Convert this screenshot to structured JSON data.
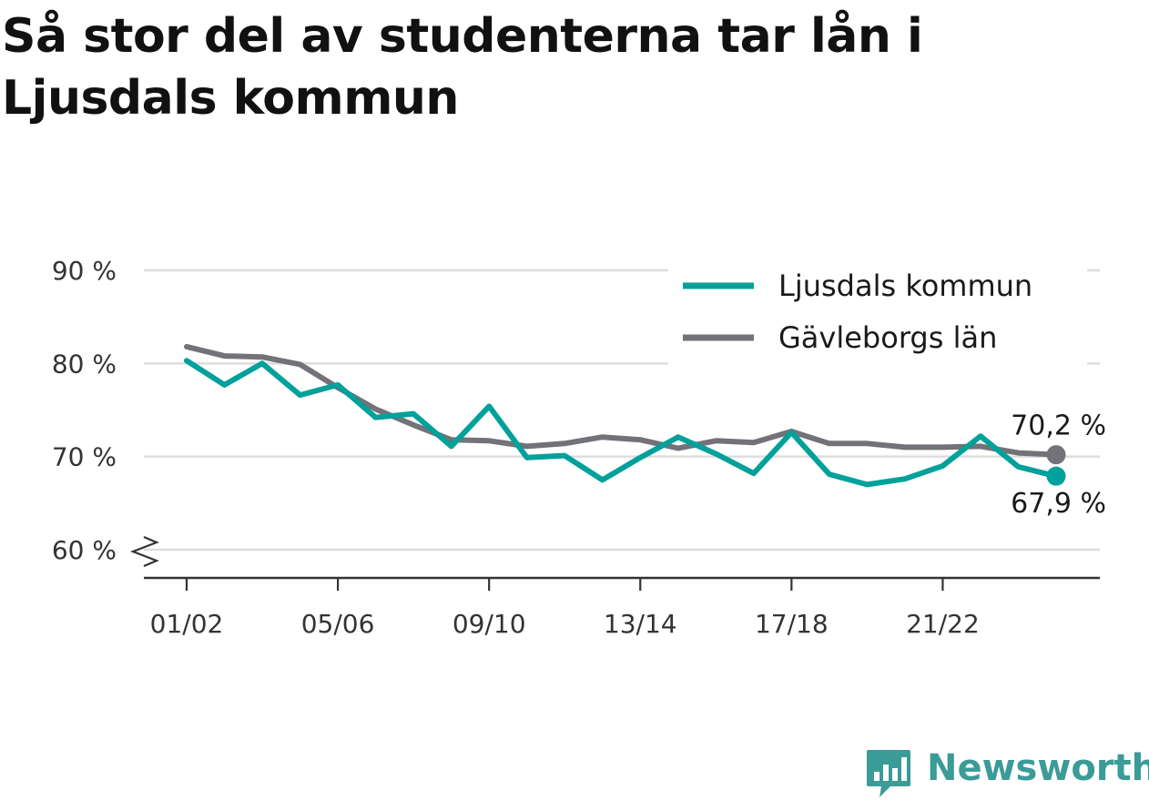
{
  "chart_data": {
    "type": "line",
    "title": "Så stor del av studenterna tar lån i Ljusdals kommun",
    "x": [
      "01/02",
      "02/03",
      "03/04",
      "04/05",
      "05/06",
      "06/07",
      "07/08",
      "08/09",
      "09/10",
      "10/11",
      "11/12",
      "12/13",
      "13/14",
      "14/15",
      "15/16",
      "16/17",
      "17/18",
      "18/19",
      "19/20",
      "20/21",
      "21/22",
      "22/23",
      "23/24",
      "24/25"
    ],
    "x_tick_labels": [
      "01/02",
      "05/06",
      "09/10",
      "13/14",
      "17/18",
      "21/22"
    ],
    "y_tick_labels": [
      "90 %",
      "80 %",
      "70 %",
      "60 %"
    ],
    "y_ticks": [
      90,
      80,
      70,
      60
    ],
    "ylim": [
      60,
      90
    ],
    "y_axis_break": true,
    "grid": true,
    "legend_position": "top-right",
    "series": [
      {
        "name": "Ljusdals kommun",
        "color": "#00a19a",
        "values": [
          80.3,
          77.7,
          80.0,
          76.6,
          77.7,
          74.2,
          74.6,
          71.1,
          75.4,
          69.9,
          70.1,
          67.5,
          69.9,
          72.1,
          70.3,
          68.2,
          72.6,
          68.1,
          67.0,
          67.6,
          69.0,
          72.2,
          68.9,
          67.9
        ],
        "end_label": "67,9 %"
      },
      {
        "name": "Gävleborgs län",
        "color": "#737278",
        "values": [
          81.8,
          80.8,
          80.7,
          79.9,
          77.4,
          75.1,
          73.4,
          71.8,
          71.7,
          71.1,
          71.4,
          72.1,
          71.8,
          70.9,
          71.7,
          71.5,
          72.7,
          71.4,
          71.4,
          71.0,
          71.0,
          71.1,
          70.4,
          70.2
        ],
        "end_label": "70,2 %"
      }
    ]
  },
  "brand": {
    "name": "Newsworthy",
    "icon": "bar-chart-speech-icon",
    "color": "#3a9b97"
  }
}
